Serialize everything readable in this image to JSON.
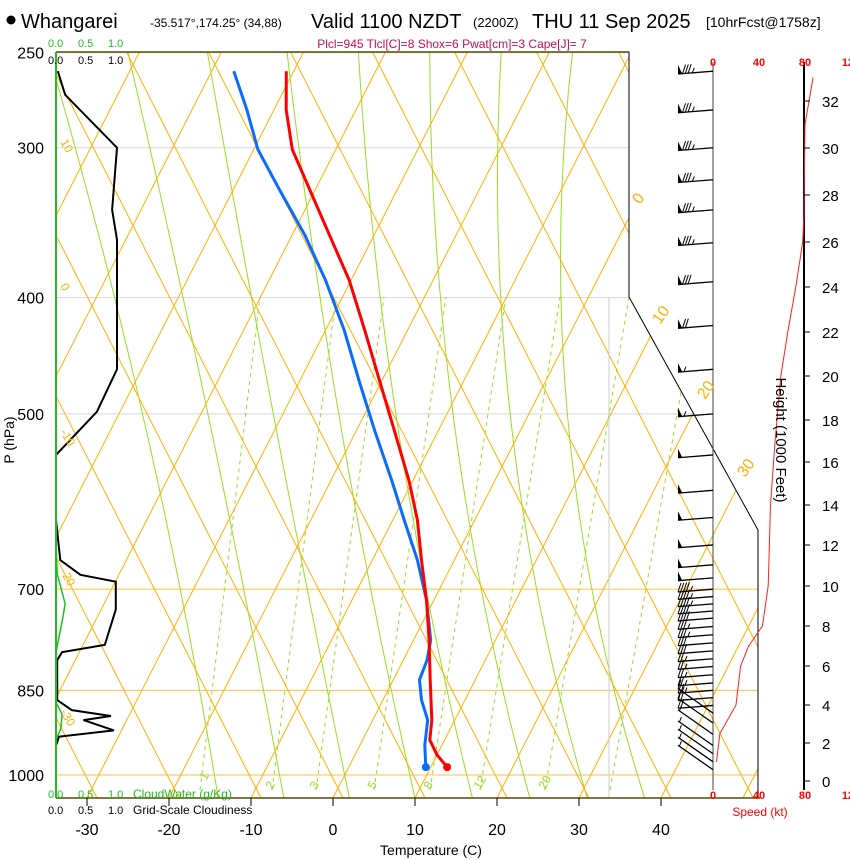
{
  "header": {
    "station": "Whangarei",
    "coords": "-35.517°,174.25° (34,88)",
    "valid": "Valid 1100 NZDT",
    "utc": "(2200Z)",
    "date": "THU 11 Sep 2025",
    "forecast": "[10hrFcst@1758z]",
    "indices": "Plcl=945 Tlcl[C]=8 Shox=6 Pwat[cm]=3 Cape[J]= 7"
  },
  "colors": {
    "temperature": "#ff0000",
    "dewpoint": "#0a6cff",
    "isotherm": "#ffb000",
    "moisture": "#99dd22",
    "cloudwater": "#22bb22",
    "indices": "#c0105a",
    "speed": "#ff0000"
  },
  "chart_data": {
    "type": "line",
    "title": "Skew-T sounding",
    "xlabel": "Temperature (C)",
    "ylabel": "P (hPa)",
    "xlim_at_base": [
      -34,
      36
    ],
    "ylim_hPa": [
      1045,
      250
    ],
    "pressure_ticks": [
      "250",
      "300",
      "400",
      "500",
      "700",
      "850",
      "1000"
    ],
    "pressure_values": [
      250,
      300,
      400,
      500,
      700,
      850,
      1000
    ],
    "temp_ticks": [
      "-30",
      "-20",
      "-10",
      "0",
      "10",
      "20",
      "30",
      "40"
    ],
    "temp_values": [
      -30,
      -20,
      -10,
      0,
      10,
      20,
      30,
      40
    ],
    "isotherm_labels_right": [
      "0",
      "10",
      "20",
      "30"
    ],
    "isotherm_labels_left": [
      "10",
      "0",
      "-10",
      "-20",
      "-30"
    ],
    "mixing_ratio_labels": [
      "1",
      "2",
      "3",
      "5",
      "8",
      "12",
      "20"
    ],
    "series": [
      {
        "name": "Temperature",
        "points": [
          [
            985,
            12.0
          ],
          [
            962,
            10.0
          ],
          [
            935,
            8.2
          ],
          [
            900,
            7.2
          ],
          [
            833,
            4.5
          ],
          [
            772,
            1.9
          ],
          [
            715,
            -0.9
          ],
          [
            662,
            -4.0
          ],
          [
            613,
            -7.0
          ],
          [
            568,
            -10.5
          ],
          [
            516,
            -15.4
          ],
          [
            469,
            -20.3
          ],
          [
            426,
            -25.2
          ],
          [
            387,
            -30.2
          ],
          [
            355,
            -35.4
          ],
          [
            325,
            -40.7
          ],
          [
            301,
            -45.3
          ],
          [
            279,
            -48.5
          ],
          [
            259,
            -50.9
          ]
        ]
      },
      {
        "name": "Dewpoint",
        "points": [
          [
            985,
            9.4
          ],
          [
            944,
            7.9
          ],
          [
            900,
            6.7
          ],
          [
            866,
            4.7
          ],
          [
            833,
            3.2
          ],
          [
            802,
            2.9
          ],
          [
            772,
            2.1
          ],
          [
            715,
            -0.9
          ],
          [
            662,
            -4.5
          ],
          [
            613,
            -8.6
          ],
          [
            568,
            -12.6
          ],
          [
            516,
            -17.8
          ],
          [
            469,
            -22.8
          ],
          [
            426,
            -27.7
          ],
          [
            387,
            -33.1
          ],
          [
            355,
            -38.4
          ],
          [
            325,
            -44.4
          ],
          [
            301,
            -49.5
          ],
          [
            279,
            -53.3
          ],
          [
            259,
            -57.3
          ]
        ]
      },
      {
        "name": "Grid-Scale Cloudiness",
        "points": [
          [
            259,
            0.03
          ],
          [
            271,
            0.15
          ],
          [
            300,
            1.0
          ],
          [
            338,
            0.92
          ],
          [
            358,
            1.0
          ],
          [
            459,
            1.0
          ],
          [
            498,
            0.67
          ],
          [
            541,
            0.0
          ],
          [
            613,
            0.0
          ],
          [
            662,
            0.07
          ],
          [
            681,
            0.4
          ],
          [
            690,
            0.98
          ],
          [
            728,
            0.98
          ],
          [
            779,
            0.8
          ],
          [
            790,
            0.1
          ],
          [
            802,
            0.02
          ],
          [
            866,
            0.02
          ],
          [
            883,
            0.26
          ],
          [
            893,
            0.9
          ],
          [
            900,
            0.45
          ],
          [
            918,
            0.95
          ],
          [
            929,
            0.05
          ],
          [
            945,
            0.0
          ]
        ]
      },
      {
        "name": "CloudWater (g/Kg)",
        "points": [
          [
            640,
            0.0
          ],
          [
            680,
            0.02
          ],
          [
            720,
            0.15
          ],
          [
            745,
            0.1
          ],
          [
            790,
            0.0
          ],
          [
            870,
            0.0
          ],
          [
            890,
            0.1
          ],
          [
            915,
            0.08
          ],
          [
            935,
            0.0
          ]
        ]
      }
    ],
    "surface_points": {
      "temperature": 12.0,
      "dewpoint": 9.4
    },
    "cloud_scales": {
      "cloudwater_ticks": [
        "0.0",
        "0.5",
        "1.0"
      ],
      "cloudwater_label": "CloudWater (g/Kg)",
      "cloudiness_ticks": [
        "0.0",
        "0.5",
        "1.0"
      ],
      "cloudiness_label": "Grid-Scale Cloudiness"
    },
    "wind": {
      "speed_label": "Speed (kt)",
      "speed_ticks": [
        "0",
        "40",
        "80",
        "120"
      ],
      "speed_values": [
        0,
        40,
        80,
        120
      ],
      "barbs": [
        [
          259,
          85
        ],
        [
          279,
          85
        ],
        [
          300,
          85
        ],
        [
          319,
          85
        ],
        [
          338,
          85
        ],
        [
          360,
          85
        ],
        [
          388,
          80
        ],
        [
          422,
          70
        ],
        [
          459,
          55
        ],
        [
          500,
          55
        ],
        [
          541,
          50
        ],
        [
          579,
          50
        ],
        [
          610,
          50
        ],
        [
          643,
          50
        ],
        [
          668,
          50
        ],
        [
          685,
          50
        ],
        [
          700,
          45
        ],
        [
          710,
          45
        ],
        [
          720,
          45
        ],
        [
          730,
          40
        ],
        [
          740,
          40
        ],
        [
          752,
          35
        ],
        [
          764,
          35
        ],
        [
          776,
          30
        ],
        [
          788,
          30
        ],
        [
          800,
          25
        ],
        [
          812,
          25
        ],
        [
          825,
          25
        ],
        [
          838,
          25
        ],
        [
          850,
          25
        ],
        [
          862,
          20
        ],
        [
          875,
          20
        ],
        [
          888,
          15
        ],
        [
          905,
          10
        ],
        [
          925,
          5
        ],
        [
          945,
          5
        ],
        [
          960,
          5
        ],
        [
          975,
          5
        ],
        [
          990,
          5
        ]
      ]
    },
    "height": {
      "label": "Height (1000 Feet)",
      "ticks": [
        "0",
        "2",
        "4",
        "6",
        "8",
        "10",
        "12",
        "14",
        "16",
        "18",
        "20",
        "22",
        "24",
        "26",
        "28",
        "30",
        "32"
      ],
      "speed_profile": [
        [
          1,
          3
        ],
        [
          2.5,
          6
        ],
        [
          4,
          20
        ],
        [
          6,
          24
        ],
        [
          7,
          31
        ],
        [
          8,
          43
        ],
        [
          10,
          48
        ],
        [
          14,
          50
        ],
        [
          17,
          54
        ],
        [
          20,
          59
        ],
        [
          22,
          65
        ],
        [
          24,
          72
        ],
        [
          26,
          78
        ],
        [
          27,
          79
        ],
        [
          31,
          80
        ],
        [
          33,
          87
        ]
      ]
    }
  }
}
